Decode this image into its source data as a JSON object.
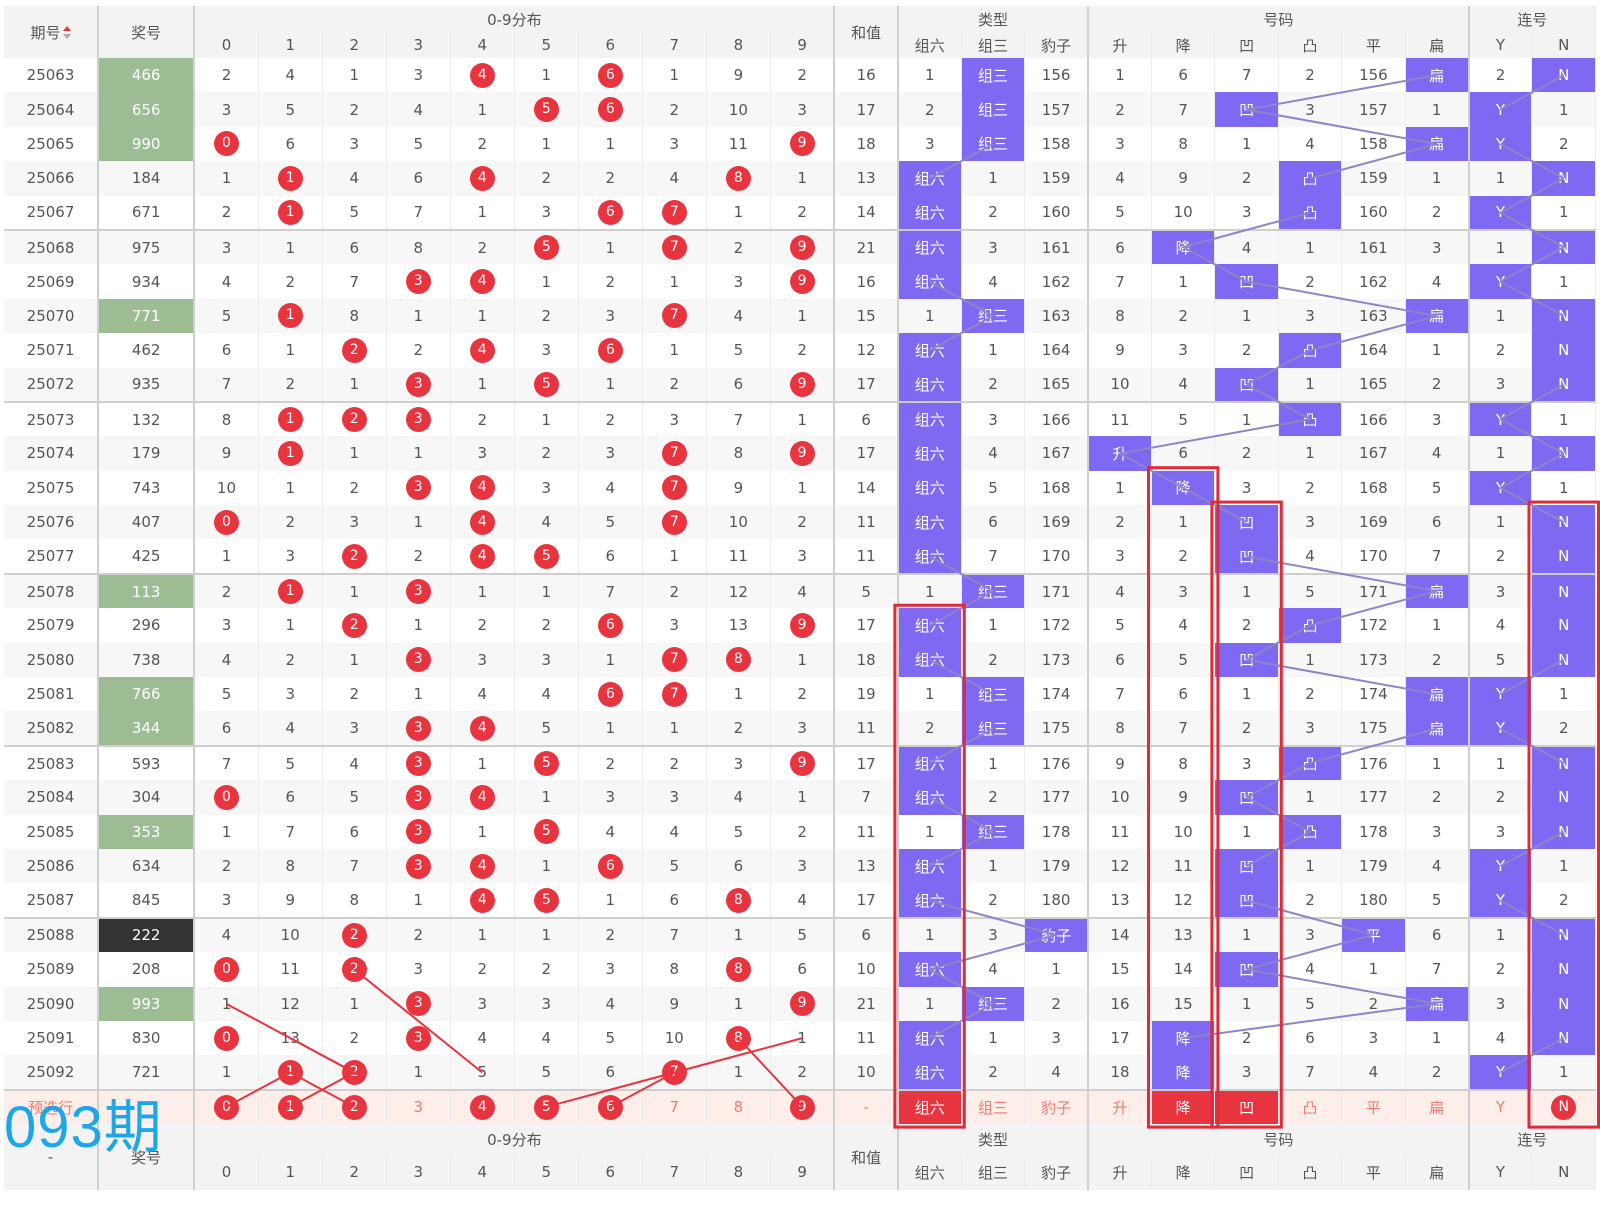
{
  "header": {
    "issue_label": "期号",
    "prize_label": "奖号",
    "dist_label": "0-9分布",
    "sum_label": "和值",
    "type_label": "类型",
    "code_label": "号码",
    "consec_label": "连号",
    "digits": [
      "0",
      "1",
      "2",
      "3",
      "4",
      "5",
      "6",
      "7",
      "8",
      "9"
    ],
    "type_sub": [
      "组六",
      "组三",
      "豹子"
    ],
    "code_sub": [
      "升",
      "降",
      "凹",
      "凸",
      "平",
      "扁"
    ],
    "consec_sub": [
      "Y",
      "N"
    ]
  },
  "rows": [
    {
      "issue": "25063",
      "prize": "466",
      "prize_style": "g",
      "dist": [
        "2",
        "4",
        "1",
        "3",
        "4",
        "1",
        "6",
        "1",
        "9",
        "2"
      ],
      "dist_hit": [
        4,
        6
      ],
      "sum": "16",
      "type": [
        "1",
        "组三",
        "156"
      ],
      "type_hl": 1,
      "code": [
        "1",
        "6",
        "7",
        "2",
        "156",
        "扁"
      ],
      "code_hl": 5,
      "consec": [
        "2",
        "N"
      ],
      "consec_hl": 1
    },
    {
      "issue": "25064",
      "prize": "656",
      "prize_style": "g",
      "dist": [
        "3",
        "5",
        "2",
        "4",
        "1",
        "5",
        "6",
        "2",
        "10",
        "3"
      ],
      "dist_hit": [
        5,
        6
      ],
      "sum": "17",
      "type": [
        "2",
        "组三",
        "157"
      ],
      "type_hl": 1,
      "code": [
        "2",
        "7",
        "凹",
        "3",
        "157",
        "1"
      ],
      "code_hl": 2,
      "consec": [
        "Y",
        "1"
      ],
      "consec_hl": 0
    },
    {
      "issue": "25065",
      "prize": "990",
      "prize_style": "g",
      "dist": [
        "0",
        "6",
        "3",
        "5",
        "2",
        "1",
        "1",
        "3",
        "11",
        "9"
      ],
      "dist_hit": [
        0,
        9
      ],
      "sum": "18",
      "type": [
        "3",
        "组三",
        "158"
      ],
      "type_hl": 1,
      "code": [
        "3",
        "8",
        "1",
        "4",
        "158",
        "扁"
      ],
      "code_hl": 5,
      "consec": [
        "Y",
        "2"
      ],
      "consec_hl": 0
    },
    {
      "issue": "25066",
      "prize": "184",
      "prize_style": "n",
      "dist": [
        "1",
        "1",
        "4",
        "6",
        "4",
        "2",
        "2",
        "4",
        "8",
        "1"
      ],
      "dist_hit": [
        1,
        4,
        8
      ],
      "sum": "13",
      "type": [
        "组六",
        "1",
        "159"
      ],
      "type_hl": 0,
      "code": [
        "4",
        "9",
        "2",
        "凸",
        "159",
        "1"
      ],
      "code_hl": 3,
      "consec": [
        "1",
        "N"
      ],
      "consec_hl": 1
    },
    {
      "issue": "25067",
      "prize": "671",
      "prize_style": "n",
      "dist": [
        "2",
        "1",
        "5",
        "7",
        "1",
        "3",
        "6",
        "7",
        "1",
        "2"
      ],
      "dist_hit": [
        1,
        6,
        7
      ],
      "sum": "14",
      "type": [
        "组六",
        "2",
        "160"
      ],
      "type_hl": 0,
      "code": [
        "5",
        "10",
        "3",
        "凸",
        "160",
        "2"
      ],
      "code_hl": 3,
      "consec": [
        "Y",
        "1"
      ],
      "consec_hl": 0
    },
    {
      "issue": "25068",
      "prize": "975",
      "prize_style": "n",
      "dist": [
        "3",
        "1",
        "6",
        "8",
        "2",
        "5",
        "1",
        "7",
        "2",
        "9"
      ],
      "dist_hit": [
        5,
        7,
        9
      ],
      "sum": "21",
      "type": [
        "组六",
        "3",
        "161"
      ],
      "type_hl": 0,
      "code": [
        "6",
        "降",
        "4",
        "1",
        "161",
        "3"
      ],
      "code_hl": 1,
      "consec": [
        "1",
        "N"
      ],
      "consec_hl": 1
    },
    {
      "issue": "25069",
      "prize": "934",
      "prize_style": "n",
      "dist": [
        "4",
        "2",
        "7",
        "3",
        "4",
        "1",
        "2",
        "1",
        "3",
        "9"
      ],
      "dist_hit": [
        3,
        4,
        9
      ],
      "sum": "16",
      "type": [
        "组六",
        "4",
        "162"
      ],
      "type_hl": 0,
      "code": [
        "7",
        "1",
        "凹",
        "2",
        "162",
        "4"
      ],
      "code_hl": 2,
      "consec": [
        "Y",
        "1"
      ],
      "consec_hl": 0
    },
    {
      "issue": "25070",
      "prize": "771",
      "prize_style": "g",
      "dist": [
        "5",
        "1",
        "8",
        "1",
        "1",
        "2",
        "3",
        "7",
        "4",
        "1"
      ],
      "dist_hit": [
        1,
        7
      ],
      "sum": "15",
      "type": [
        "1",
        "组三",
        "163"
      ],
      "type_hl": 1,
      "code": [
        "8",
        "2",
        "1",
        "3",
        "163",
        "扁"
      ],
      "code_hl": 5,
      "consec": [
        "1",
        "N"
      ],
      "consec_hl": 1
    },
    {
      "issue": "25071",
      "prize": "462",
      "prize_style": "n",
      "dist": [
        "6",
        "1",
        "2",
        "2",
        "4",
        "3",
        "6",
        "1",
        "5",
        "2"
      ],
      "dist_hit": [
        2,
        4,
        6
      ],
      "sum": "12",
      "type": [
        "组六",
        "1",
        "164"
      ],
      "type_hl": 0,
      "code": [
        "9",
        "3",
        "2",
        "凸",
        "164",
        "1"
      ],
      "code_hl": 3,
      "consec": [
        "2",
        "N"
      ],
      "consec_hl": 1
    },
    {
      "issue": "25072",
      "prize": "935",
      "prize_style": "n",
      "dist": [
        "7",
        "2",
        "1",
        "3",
        "1",
        "5",
        "1",
        "2",
        "6",
        "9"
      ],
      "dist_hit": [
        3,
        5,
        9
      ],
      "sum": "17",
      "type": [
        "组六",
        "2",
        "165"
      ],
      "type_hl": 0,
      "code": [
        "10",
        "4",
        "凹",
        "1",
        "165",
        "2"
      ],
      "code_hl": 2,
      "consec": [
        "3",
        "N"
      ],
      "consec_hl": 1
    },
    {
      "issue": "25073",
      "prize": "132",
      "prize_style": "n",
      "dist": [
        "8",
        "1",
        "2",
        "3",
        "2",
        "1",
        "2",
        "3",
        "7",
        "1"
      ],
      "dist_hit": [
        1,
        2,
        3
      ],
      "sum": "6",
      "type": [
        "组六",
        "3",
        "166"
      ],
      "type_hl": 0,
      "code": [
        "11",
        "5",
        "1",
        "凸",
        "166",
        "3"
      ],
      "code_hl": 3,
      "consec": [
        "Y",
        "1"
      ],
      "consec_hl": 0
    },
    {
      "issue": "25074",
      "prize": "179",
      "prize_style": "n",
      "dist": [
        "9",
        "1",
        "1",
        "1",
        "3",
        "2",
        "3",
        "7",
        "8",
        "9"
      ],
      "dist_hit": [
        1,
        7,
        9
      ],
      "sum": "17",
      "type": [
        "组六",
        "4",
        "167"
      ],
      "type_hl": 0,
      "code": [
        "升",
        "6",
        "2",
        "1",
        "167",
        "4"
      ],
      "code_hl": 0,
      "consec": [
        "1",
        "N"
      ],
      "consec_hl": 1
    },
    {
      "issue": "25075",
      "prize": "743",
      "prize_style": "n",
      "dist": [
        "10",
        "1",
        "2",
        "3",
        "4",
        "3",
        "4",
        "7",
        "9",
        "1"
      ],
      "dist_hit": [
        3,
        4,
        7
      ],
      "sum": "14",
      "type": [
        "组六",
        "5",
        "168"
      ],
      "type_hl": 0,
      "code": [
        "1",
        "降",
        "3",
        "2",
        "168",
        "5"
      ],
      "code_hl": 1,
      "consec": [
        "Y",
        "1"
      ],
      "consec_hl": 0
    },
    {
      "issue": "25076",
      "prize": "407",
      "prize_style": "n",
      "dist": [
        "0",
        "2",
        "3",
        "1",
        "4",
        "4",
        "5",
        "7",
        "10",
        "2"
      ],
      "dist_hit": [
        0,
        4,
        7
      ],
      "sum": "11",
      "type": [
        "组六",
        "6",
        "169"
      ],
      "type_hl": 0,
      "code": [
        "2",
        "1",
        "凹",
        "3",
        "169",
        "6"
      ],
      "code_hl": 2,
      "consec": [
        "1",
        "N"
      ],
      "consec_hl": 1
    },
    {
      "issue": "25077",
      "prize": "425",
      "prize_style": "n",
      "dist": [
        "1",
        "3",
        "2",
        "2",
        "4",
        "5",
        "6",
        "1",
        "11",
        "3"
      ],
      "dist_hit": [
        2,
        4,
        5
      ],
      "sum": "11",
      "type": [
        "组六",
        "7",
        "170"
      ],
      "type_hl": 0,
      "code": [
        "3",
        "2",
        "凹",
        "4",
        "170",
        "7"
      ],
      "code_hl": 2,
      "consec": [
        "2",
        "N"
      ],
      "consec_hl": 1
    },
    {
      "issue": "25078",
      "prize": "113",
      "prize_style": "g",
      "dist": [
        "2",
        "1",
        "1",
        "3",
        "1",
        "1",
        "7",
        "2",
        "12",
        "4"
      ],
      "dist_hit": [
        1,
        3
      ],
      "sum": "5",
      "type": [
        "1",
        "组三",
        "171"
      ],
      "type_hl": 1,
      "code": [
        "4",
        "3",
        "1",
        "5",
        "171",
        "扁"
      ],
      "code_hl": 5,
      "consec": [
        "3",
        "N"
      ],
      "consec_hl": 1
    },
    {
      "issue": "25079",
      "prize": "296",
      "prize_style": "n",
      "dist": [
        "3",
        "1",
        "2",
        "1",
        "2",
        "2",
        "6",
        "3",
        "13",
        "9"
      ],
      "dist_hit": [
        2,
        6,
        9
      ],
      "sum": "17",
      "type": [
        "组六",
        "1",
        "172"
      ],
      "type_hl": 0,
      "code": [
        "5",
        "4",
        "2",
        "凸",
        "172",
        "1"
      ],
      "code_hl": 3,
      "consec": [
        "4",
        "N"
      ],
      "consec_hl": 1
    },
    {
      "issue": "25080",
      "prize": "738",
      "prize_style": "n",
      "dist": [
        "4",
        "2",
        "1",
        "3",
        "3",
        "3",
        "1",
        "7",
        "8",
        "1"
      ],
      "dist_hit": [
        3,
        7,
        8
      ],
      "sum": "18",
      "type": [
        "组六",
        "2",
        "173"
      ],
      "type_hl": 0,
      "code": [
        "6",
        "5",
        "凹",
        "1",
        "173",
        "2"
      ],
      "code_hl": 2,
      "consec": [
        "5",
        "N"
      ],
      "consec_hl": 1
    },
    {
      "issue": "25081",
      "prize": "766",
      "prize_style": "g",
      "dist": [
        "5",
        "3",
        "2",
        "1",
        "4",
        "4",
        "6",
        "7",
        "1",
        "2"
      ],
      "dist_hit": [
        6,
        7
      ],
      "sum": "19",
      "type": [
        "1",
        "组三",
        "174"
      ],
      "type_hl": 1,
      "code": [
        "7",
        "6",
        "1",
        "2",
        "174",
        "扁"
      ],
      "code_hl": 5,
      "consec": [
        "Y",
        "1"
      ],
      "consec_hl": 0
    },
    {
      "issue": "25082",
      "prize": "344",
      "prize_style": "g",
      "dist": [
        "6",
        "4",
        "3",
        "3",
        "4",
        "5",
        "1",
        "1",
        "2",
        "3"
      ],
      "dist_hit": [
        3,
        4
      ],
      "sum": "11",
      "type": [
        "2",
        "组三",
        "175"
      ],
      "type_hl": 1,
      "code": [
        "8",
        "7",
        "2",
        "3",
        "175",
        "扁"
      ],
      "code_hl": 5,
      "consec": [
        "Y",
        "2"
      ],
      "consec_hl": 0
    },
    {
      "issue": "25083",
      "prize": "593",
      "prize_style": "n",
      "dist": [
        "7",
        "5",
        "4",
        "3",
        "1",
        "5",
        "2",
        "2",
        "3",
        "9"
      ],
      "dist_hit": [
        3,
        5,
        9
      ],
      "sum": "17",
      "type": [
        "组六",
        "1",
        "176"
      ],
      "type_hl": 0,
      "code": [
        "9",
        "8",
        "3",
        "凸",
        "176",
        "1"
      ],
      "code_hl": 3,
      "consec": [
        "1",
        "N"
      ],
      "consec_hl": 1
    },
    {
      "issue": "25084",
      "prize": "304",
      "prize_style": "n",
      "dist": [
        "0",
        "6",
        "5",
        "3",
        "4",
        "1",
        "3",
        "3",
        "4",
        "1"
      ],
      "dist_hit": [
        0,
        3,
        4
      ],
      "sum": "7",
      "type": [
        "组六",
        "2",
        "177"
      ],
      "type_hl": 0,
      "code": [
        "10",
        "9",
        "凹",
        "1",
        "177",
        "2"
      ],
      "code_hl": 2,
      "consec": [
        "2",
        "N"
      ],
      "consec_hl": 1
    },
    {
      "issue": "25085",
      "prize": "353",
      "prize_style": "g",
      "dist": [
        "1",
        "7",
        "6",
        "3",
        "1",
        "5",
        "4",
        "4",
        "5",
        "2"
      ],
      "dist_hit": [
        3,
        5
      ],
      "sum": "11",
      "type": [
        "1",
        "组三",
        "178"
      ],
      "type_hl": 1,
      "code": [
        "11",
        "10",
        "1",
        "凸",
        "178",
        "3"
      ],
      "code_hl": 3,
      "consec": [
        "3",
        "N"
      ],
      "consec_hl": 1
    },
    {
      "issue": "25086",
      "prize": "634",
      "prize_style": "n",
      "dist": [
        "2",
        "8",
        "7",
        "3",
        "4",
        "1",
        "6",
        "5",
        "6",
        "3"
      ],
      "dist_hit": [
        3,
        4,
        6
      ],
      "sum": "13",
      "type": [
        "组六",
        "1",
        "179"
      ],
      "type_hl": 0,
      "code": [
        "12",
        "11",
        "凹",
        "1",
        "179",
        "4"
      ],
      "code_hl": 2,
      "consec": [
        "Y",
        "1"
      ],
      "consec_hl": 0
    },
    {
      "issue": "25087",
      "prize": "845",
      "prize_style": "n",
      "dist": [
        "3",
        "9",
        "8",
        "1",
        "4",
        "5",
        "1",
        "6",
        "8",
        "4"
      ],
      "dist_hit": [
        4,
        5,
        8
      ],
      "sum": "17",
      "type": [
        "组六",
        "2",
        "180"
      ],
      "type_hl": 0,
      "code": [
        "13",
        "12",
        "凹",
        "2",
        "180",
        "5"
      ],
      "code_hl": 2,
      "consec": [
        "Y",
        "2"
      ],
      "consec_hl": 0
    },
    {
      "issue": "25088",
      "prize": "222",
      "prize_style": "d",
      "dist": [
        "4",
        "10",
        "2",
        "2",
        "1",
        "1",
        "2",
        "7",
        "1",
        "5"
      ],
      "dist_hit": [
        2
      ],
      "sum": "6",
      "type": [
        "1",
        "3",
        "豹子"
      ],
      "type_hl": 2,
      "code": [
        "14",
        "13",
        "1",
        "3",
        "平",
        "6"
      ],
      "code_hl": 4,
      "consec": [
        "1",
        "N"
      ],
      "consec_hl": 1
    },
    {
      "issue": "25089",
      "prize": "208",
      "prize_style": "n",
      "dist": [
        "0",
        "11",
        "2",
        "3",
        "2",
        "2",
        "3",
        "8",
        "8",
        "6"
      ],
      "dist_hit": [
        0,
        2,
        8
      ],
      "sum": "10",
      "type": [
        "组六",
        "4",
        "1"
      ],
      "type_hl": 0,
      "code": [
        "15",
        "14",
        "凹",
        "4",
        "1",
        "7"
      ],
      "code_hl": 2,
      "consec": [
        "2",
        "N"
      ],
      "consec_hl": 1
    },
    {
      "issue": "25090",
      "prize": "993",
      "prize_style": "g",
      "dist": [
        "1",
        "12",
        "1",
        "3",
        "3",
        "3",
        "4",
        "9",
        "1",
        "9"
      ],
      "dist_hit": [
        3,
        9
      ],
      "sum": "21",
      "type": [
        "1",
        "组三",
        "2"
      ],
      "type_hl": 1,
      "code": [
        "16",
        "15",
        "1",
        "5",
        "2",
        "扁"
      ],
      "code_hl": 5,
      "consec": [
        "3",
        "N"
      ],
      "consec_hl": 1
    },
    {
      "issue": "25091",
      "prize": "830",
      "prize_style": "n",
      "dist": [
        "0",
        "13",
        "2",
        "3",
        "4",
        "4",
        "5",
        "10",
        "8",
        "1"
      ],
      "dist_hit": [
        0,
        3,
        8
      ],
      "sum": "11",
      "type": [
        "组六",
        "1",
        "3"
      ],
      "type_hl": 0,
      "code": [
        "17",
        "降",
        "2",
        "6",
        "3",
        "1"
      ],
      "code_hl": 1,
      "consec": [
        "4",
        "N"
      ],
      "consec_hl": 1
    },
    {
      "issue": "25092",
      "prize": "721",
      "prize_style": "n",
      "dist": [
        "1",
        "1",
        "2",
        "1",
        "5",
        "5",
        "6",
        "7",
        "1",
        "2"
      ],
      "dist_hit": [
        1,
        2,
        7
      ],
      "sum": "10",
      "type": [
        "组六",
        "2",
        "4"
      ],
      "type_hl": 0,
      "code": [
        "18",
        "降",
        "3",
        "7",
        "4",
        "2"
      ],
      "code_hl": 1,
      "consec": [
        "Y",
        "1"
      ],
      "consec_hl": 0
    }
  ],
  "prediction": {
    "label": "预选行",
    "prize": "",
    "dist": [
      "0",
      "1",
      "2",
      "3",
      "4",
      "5",
      "6",
      "7",
      "8",
      "9"
    ],
    "dist_hit": [
      0,
      1,
      2,
      4,
      5,
      6,
      9
    ],
    "sum": "-",
    "type": [
      "组六",
      "组三",
      "豹子"
    ],
    "type_red": [
      0
    ],
    "code": [
      "升",
      "降",
      "凹",
      "凸",
      "平",
      "扁"
    ],
    "code_red": [
      1,
      2
    ],
    "consec": [
      "Y",
      "N"
    ],
    "consec_ball": 1
  },
  "footer": {
    "issue_value": "-",
    "prize_label": "奖号",
    "dist_label": "0-9分布",
    "sum_label": "和值",
    "type_label": "类型",
    "code_label": "号码",
    "consec_label": "连号"
  },
  "watermark": "093期",
  "colors": {
    "ball_red": "#e8343f",
    "highlight_purple": "#7f69f2",
    "prize_green": "#9cbd93",
    "prize_dark": "#333333",
    "trend_line": "#8a86c8",
    "box_red": "#e02a3a",
    "watermark_blue": "#1ea7e6"
  }
}
